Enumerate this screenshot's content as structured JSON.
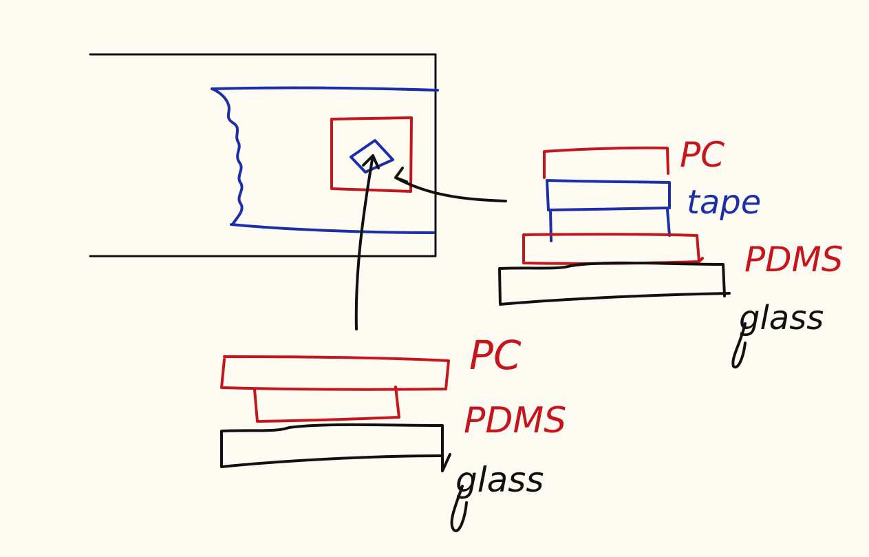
{
  "colors": {
    "background": "#fdfbf2",
    "black_ink": "#111111",
    "blue_ink": "#1c2fa8",
    "red_ink": "#c4161c"
  },
  "labels": {
    "right_stack": {
      "pc": "PC",
      "tape": "tape",
      "pdms": "PDMS",
      "glass": "glass"
    },
    "bottom_stack": {
      "pc": "PC",
      "pdms": "PDMS",
      "glass": "glass"
    }
  }
}
